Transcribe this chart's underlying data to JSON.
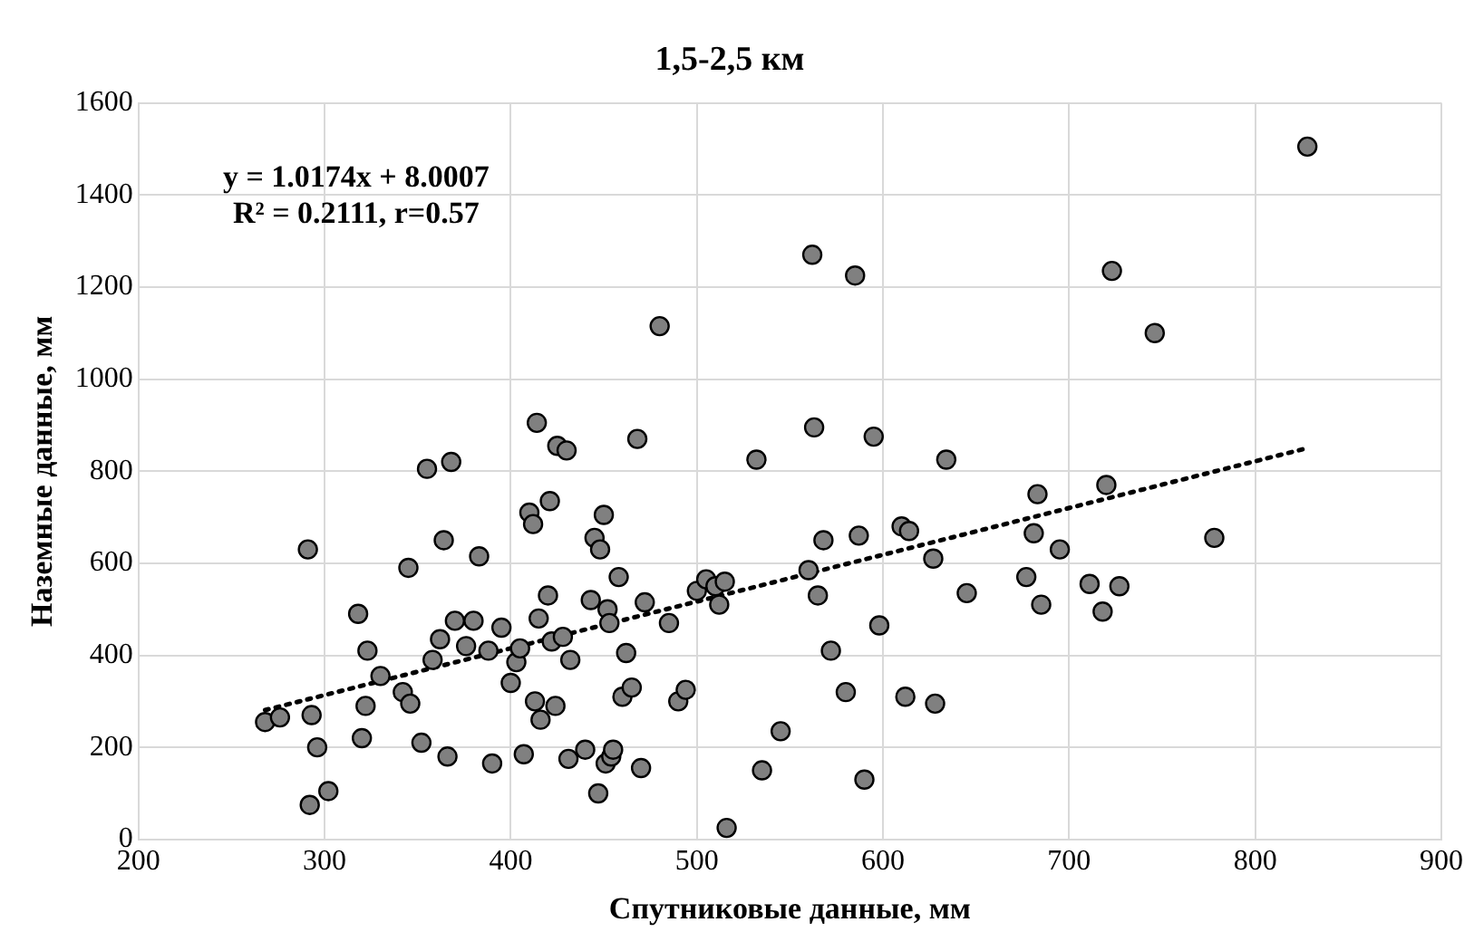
{
  "chart_data": {
    "type": "scatter",
    "title": "1,5-2,5 км",
    "xlabel": "Спутниковые данные, мм",
    "ylabel": "Наземные данные, мм",
    "annotations": [
      "y = 1.0174x + 8.0007",
      "R² = 0.2111, r=0.57"
    ],
    "xlim": [
      200,
      900
    ],
    "xticks": [
      200,
      300,
      400,
      500,
      600,
      700,
      800,
      900
    ],
    "ylim": [
      0,
      1600
    ],
    "yticks": [
      0,
      200,
      400,
      600,
      800,
      1000,
      1200,
      1400,
      1600
    ],
    "grid": true,
    "legend": false,
    "marker": "circle",
    "series": [
      {
        "type": "scatter",
        "color": "#808080",
        "x": [
          268,
          276,
          291,
          292,
          293,
          296,
          302,
          318,
          320,
          322,
          323,
          330,
          342,
          345,
          346,
          352,
          355,
          358,
          362,
          364,
          366,
          368,
          370,
          376,
          380,
          383,
          388,
          390,
          395,
          400,
          403,
          405,
          407,
          410,
          412,
          413,
          414,
          415,
          416,
          420,
          421,
          422,
          424,
          425,
          428,
          430,
          431,
          432,
          440,
          443,
          445,
          447,
          448,
          450,
          451,
          452,
          453,
          454,
          455,
          458,
          460,
          462,
          465,
          468,
          470,
          472,
          480,
          485,
          490,
          494,
          500,
          505,
          510,
          512,
          515,
          516,
          532,
          535,
          545,
          560,
          562,
          563,
          565,
          568,
          572,
          580,
          585,
          587,
          590,
          595,
          598,
          610,
          612,
          614,
          627,
          628,
          634,
          645,
          677,
          681,
          683,
          685,
          695,
          711,
          718,
          720,
          723,
          727,
          746,
          778,
          828
        ],
        "values": [
          255,
          265,
          630,
          75,
          270,
          200,
          105,
          490,
          220,
          290,
          410,
          355,
          320,
          590,
          295,
          210,
          805,
          390,
          435,
          650,
          180,
          820,
          475,
          420,
          475,
          615,
          410,
          165,
          460,
          340,
          385,
          415,
          185,
          710,
          685,
          300,
          905,
          480,
          260,
          530,
          735,
          430,
          290,
          855,
          440,
          845,
          175,
          390,
          195,
          520,
          655,
          100,
          630,
          705,
          165,
          500,
          470,
          180,
          195,
          570,
          310,
          405,
          330,
          870,
          155,
          515,
          1115,
          470,
          300,
          325,
          540,
          565,
          550,
          510,
          560,
          25,
          825,
          150,
          235,
          585,
          1270,
          895,
          530,
          650,
          410,
          320,
          1225,
          660,
          130,
          875,
          465,
          680,
          310,
          670,
          610,
          295,
          825,
          535,
          570,
          665,
          750,
          510,
          630,
          555,
          495,
          770,
          1235,
          550,
          1100,
          655,
          1505
        ]
      },
      {
        "type": "line",
        "color": "#000000",
        "line_style": "dotted",
        "marker": "none",
        "x": [
          268,
          828
        ],
        "values": [
          281,
          850
        ]
      }
    ]
  }
}
